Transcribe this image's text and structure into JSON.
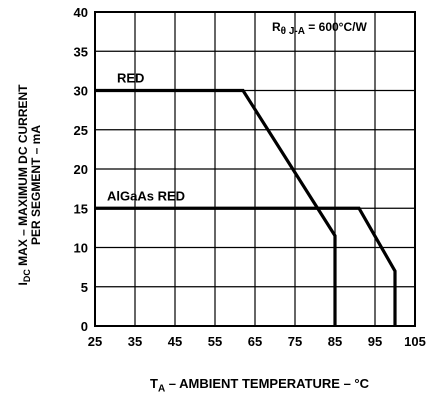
{
  "chart_data": {
    "type": "line",
    "xlabel_main": "T",
    "xlabel_sub": "A",
    "xlabel_rest": " – AMBIENT TEMPERATURE – °C",
    "ylabel_line1": "PER SEGMENT – mA",
    "ylabel_line2_main": "I",
    "ylabel_line2_sub": "DC",
    "ylabel_line2_rest": " MAX – MAXIMUM DC CURRENT",
    "xlim": [
      25,
      105
    ],
    "ylim": [
      0,
      40
    ],
    "x_ticks": [
      "25",
      "35",
      "45",
      "55",
      "65",
      "75",
      "85",
      "95",
      "105"
    ],
    "y_ticks": [
      "0",
      "5",
      "10",
      "15",
      "20",
      "25",
      "30",
      "35",
      "40"
    ],
    "grid": true,
    "annotation": {
      "prefix": "R",
      "sub": "θ J-A",
      "rest": " = 600°C/W"
    },
    "series": [
      {
        "name": "RED",
        "x": [
          25,
          62,
          85,
          85
        ],
        "y": [
          30,
          30,
          11.5,
          0
        ]
      },
      {
        "name": "AlGaAs RED",
        "x": [
          25,
          91,
          100,
          100
        ],
        "y": [
          15,
          15,
          7,
          0
        ]
      }
    ]
  }
}
